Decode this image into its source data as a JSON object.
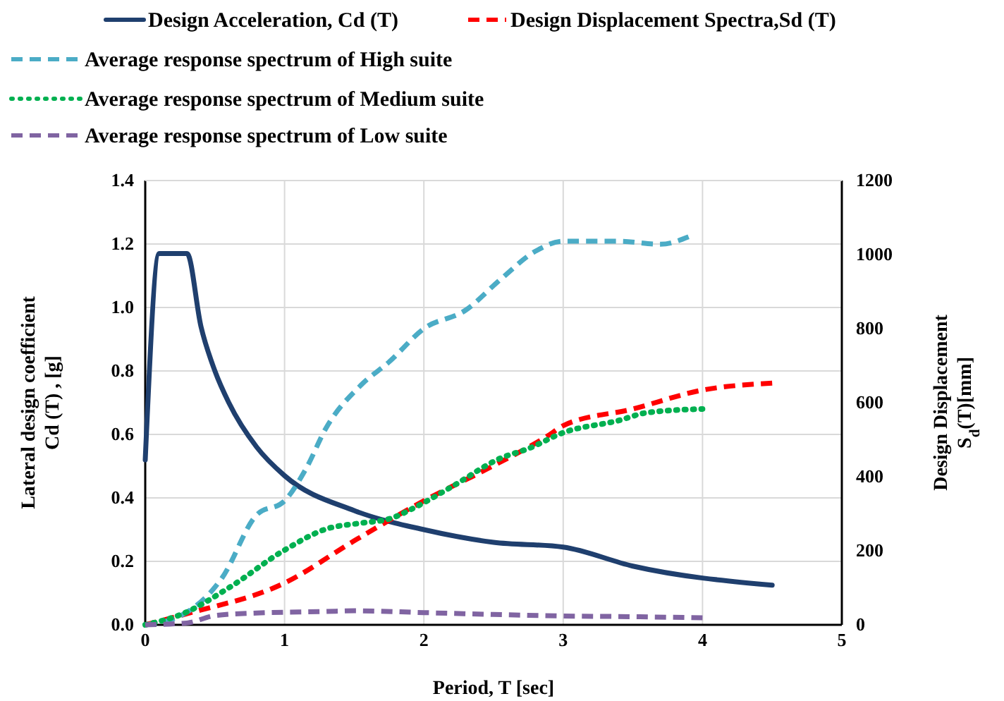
{
  "chart_data": {
    "type": "line",
    "xlabel": "Period, T [sec]",
    "ylabel": "Lateral  design coefficient\nCd (T) , [g]",
    "y2label": "Design Displacement\nS$_{d}$(T)[mm]",
    "xlim": [
      0,
      5
    ],
    "xticks": [
      0,
      1,
      2,
      3,
      4,
      5
    ],
    "ylim": [
      0,
      1.4
    ],
    "yticks": [
      {
        "value": 0,
        "label": "0.0"
      },
      {
        "value": 0.2,
        "label": "0.2"
      },
      {
        "value": 0.4,
        "label": "0.4"
      },
      {
        "value": 0.6,
        "label": "0.6"
      },
      {
        "value": 0.8,
        "label": "0.8"
      },
      {
        "value": 1,
        "label": "1.0"
      },
      {
        "value": 1.2,
        "label": "1.2"
      },
      {
        "value": 1.4,
        "label": "1.4"
      }
    ],
    "y2lim": [
      0,
      1200
    ],
    "y2ticks": [
      0,
      200,
      400,
      600,
      800,
      1000,
      1200
    ],
    "grid": true,
    "legend": "top",
    "marker": "none",
    "series": [
      {
        "name": "Design Acceleration, Cd (T)",
        "color": "#1f3f6e",
        "line_style": "solid",
        "x": [
          0,
          0.1,
          0.3,
          0.4,
          0.5,
          0.6,
          0.8,
          1,
          1.5,
          2,
          2.5,
          3,
          3.5,
          4.5
        ],
        "values": [
          0.52,
          1.17,
          1.17,
          0.94,
          0.8,
          0.7,
          0.56,
          0.47,
          0.36,
          0.3,
          0.26,
          0.245,
          0.185,
          0.125
        ]
      },
      {
        "name": "Design Displacement Spectra,Sd (T)",
        "color": "#ff0000",
        "line_style": "dashed",
        "axis": "y2",
        "x": [
          0,
          0.3,
          1,
          1.5,
          2,
          2.5,
          2.9,
          3,
          3.5,
          4,
          4.5
        ],
        "values": [
          0,
          30,
          113,
          227,
          335,
          430,
          513,
          538,
          583,
          634,
          653
        ]
      },
      {
        "name": "Average  response spectrum of High suite",
        "color": "#4bacc6",
        "line_style": "dashed",
        "axis": "y2",
        "x": [
          0,
          0.25,
          0.55,
          0.8,
          1,
          1.15,
          1.3,
          1.55,
          1.75,
          2,
          2.3,
          2.55,
          2.8,
          3,
          3.4,
          3.7,
          3.9
        ],
        "values": [
          0,
          24,
          126,
          297,
          335,
          419,
          533,
          648,
          710,
          800,
          850,
          933,
          1009,
          1036,
          1036,
          1028,
          1048
        ]
      },
      {
        "name": "Average  response spectrum of Medium suite",
        "color": "#00b050",
        "line_style": "dotted",
        "axis": "y2",
        "x": [
          0,
          0.27,
          0.6,
          1,
          1.3,
          1.55,
          1.75,
          1.95,
          2.2,
          2.55,
          2.75,
          3,
          3.4,
          3.6,
          4
        ],
        "values": [
          0,
          30,
          100,
          202,
          259,
          275,
          286,
          320,
          373,
          450,
          476,
          519,
          552,
          573,
          583
        ]
      },
      {
        "name": "Average  response spectrum of Low suite",
        "color": "#8064a2",
        "line_style": "dashed",
        "axis": "y2",
        "x": [
          0,
          0.3,
          0.5,
          0.8,
          1.3,
          1.5,
          2,
          2.5,
          3,
          3.5,
          4
        ],
        "values": [
          0,
          5,
          25,
          32,
          36,
          38,
          33,
          28,
          24,
          22,
          19
        ]
      }
    ]
  }
}
